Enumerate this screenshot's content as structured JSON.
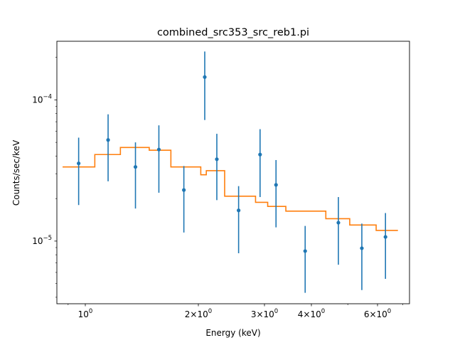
{
  "chart_data": {
    "type": "scatter",
    "title": "combined_src353_src_reb1.pi",
    "xlabel": "Energy (keV)",
    "ylabel": "Counts/sec/keV",
    "xscale": "log",
    "yscale": "log",
    "xlim": [
      0.84,
      7.3
    ],
    "ylim": [
      3.6e-06,
      0.00026
    ],
    "grid": false,
    "x_major_ticks": [
      {
        "value": 1,
        "base": "10",
        "exp": "0"
      },
      {
        "value": 2,
        "base": "2×10",
        "exp": "0"
      },
      {
        "value": 3,
        "base": "3×10",
        "exp": "0"
      },
      {
        "value": 4,
        "base": "4×10",
        "exp": "0"
      },
      {
        "value": 6,
        "base": "6×10",
        "exp": "0"
      }
    ],
    "x_minor_ticks": [
      0.9,
      5,
      7
    ],
    "y_major_ticks": [
      {
        "value": 1e-05,
        "base": "10",
        "exp": "−5"
      },
      {
        "value": 0.0001,
        "base": "10",
        "exp": "−4"
      }
    ],
    "y_minor_ticks": [
      4e-06,
      5e-06,
      6e-06,
      7e-06,
      8e-06,
      9e-06,
      2e-05,
      3e-05,
      4e-05,
      5e-05,
      6e-05,
      7e-05,
      8e-05,
      9e-05,
      0.0002
    ],
    "colors": {
      "data": "#1f77b4",
      "model": "#ff7f0e",
      "axes": "#000000"
    },
    "series": [
      {
        "type": "errorbar",
        "color": "#1f77b4",
        "points": [
          {
            "x": 0.96,
            "y": 3.55e-05,
            "lo": 1.8e-05,
            "hi": 5.4e-05
          },
          {
            "x": 1.15,
            "y": 5.2e-05,
            "lo": 2.65e-05,
            "hi": 7.9e-05
          },
          {
            "x": 1.36,
            "y": 3.35e-05,
            "lo": 1.7e-05,
            "hi": 5e-05
          },
          {
            "x": 1.57,
            "y": 4.45e-05,
            "lo": 2.2e-05,
            "hi": 6.6e-05
          },
          {
            "x": 1.83,
            "y": 2.3e-05,
            "lo": 1.15e-05,
            "hi": 3.4e-05
          },
          {
            "x": 2.08,
            "y": 0.000145,
            "lo": 7.2e-05,
            "hi": 0.00022
          },
          {
            "x": 2.24,
            "y": 3.8e-05,
            "lo": 1.95e-05,
            "hi": 5.75e-05
          },
          {
            "x": 2.56,
            "y": 1.65e-05,
            "lo": 8.2e-06,
            "hi": 2.45e-05
          },
          {
            "x": 2.92,
            "y": 4.1e-05,
            "lo": 2.05e-05,
            "hi": 6.2e-05
          },
          {
            "x": 3.22,
            "y": 2.5e-05,
            "lo": 1.25e-05,
            "hi": 3.75e-05
          },
          {
            "x": 3.85,
            "y": 8.5e-06,
            "lo": 4.3e-06,
            "hi": 1.28e-05
          },
          {
            "x": 4.72,
            "y": 1.35e-05,
            "lo": 6.8e-06,
            "hi": 2.05e-05
          },
          {
            "x": 5.45,
            "y": 8.9e-06,
            "lo": 4.5e-06,
            "hi": 1.33e-05
          },
          {
            "x": 6.3,
            "y": 1.07e-05,
            "lo": 5.4e-06,
            "hi": 1.58e-05
          }
        ]
      },
      {
        "type": "step",
        "color": "#ff7f0e",
        "steps": [
          {
            "x0": 0.87,
            "x1": 1.06,
            "y": 3.35e-05
          },
          {
            "x0": 1.06,
            "x1": 1.24,
            "y": 4.1e-05
          },
          {
            "x0": 1.24,
            "x1": 1.48,
            "y": 4.6e-05
          },
          {
            "x0": 1.48,
            "x1": 1.69,
            "y": 4.4e-05
          },
          {
            "x0": 1.69,
            "x1": 2.03,
            "y": 3.35e-05
          },
          {
            "x0": 2.03,
            "x1": 2.1,
            "y": 2.95e-05
          },
          {
            "x0": 2.1,
            "x1": 2.35,
            "y": 3.15e-05
          },
          {
            "x0": 2.35,
            "x1": 2.84,
            "y": 2.08e-05
          },
          {
            "x0": 2.84,
            "x1": 3.06,
            "y": 1.88e-05
          },
          {
            "x0": 3.06,
            "x1": 3.42,
            "y": 1.76e-05
          },
          {
            "x0": 3.42,
            "x1": 4.37,
            "y": 1.63e-05
          },
          {
            "x0": 4.37,
            "x1": 5.06,
            "y": 1.44e-05
          },
          {
            "x0": 5.06,
            "x1": 5.95,
            "y": 1.3e-05
          },
          {
            "x0": 5.95,
            "x1": 6.8,
            "y": 1.19e-05
          }
        ]
      }
    ]
  }
}
